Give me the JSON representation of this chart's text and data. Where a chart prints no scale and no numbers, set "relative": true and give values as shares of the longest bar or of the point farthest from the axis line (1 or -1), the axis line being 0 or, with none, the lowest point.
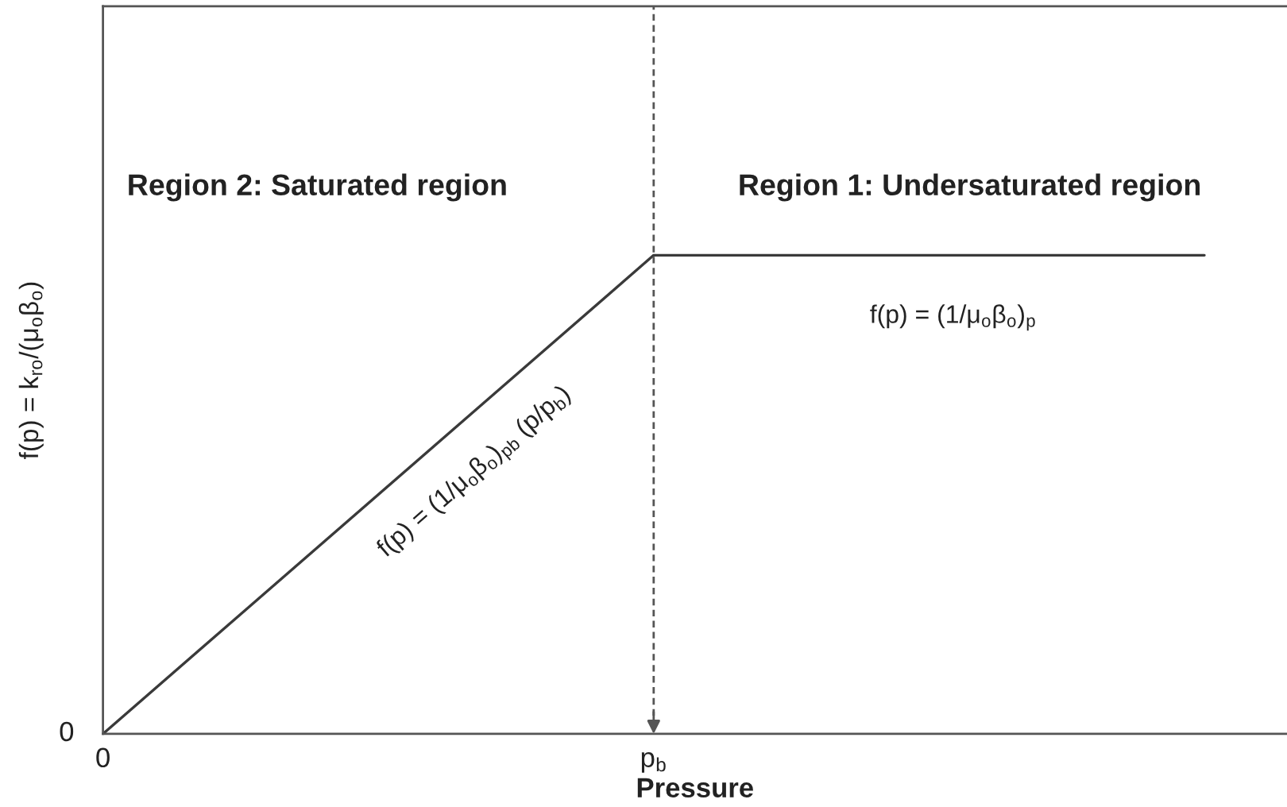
{
  "chart_data": {
    "type": "line",
    "relative": true,
    "categories": [
      "0",
      "p$_{b}$",
      null
    ],
    "series": [
      {
        "color": "#3a3a3a",
        "values": [
          0,
          1,
          1
        ]
      }
    ],
    "xlabel": "Pressure",
    "ylabel": "f(p) = k$_{ro}$/(μ$_{o}$β$_{o}$)",
    "ref_lines": [
      {
        "axis": "x",
        "value": "p$_{b}$",
        "color": "#555555",
        "line_style": "dashed"
      }
    ],
    "annotations": [
      "Region 2: Saturated region",
      "Region 1: Undersaturated region",
      "f(p) = (1/μ$_{o}$β$_{o}$)$_{p}$",
      "f(p) = (1/μ$_{o}$β$_{o}$)$_{pb}$ (p/p$_{b}$)",
      "0"
    ]
  }
}
